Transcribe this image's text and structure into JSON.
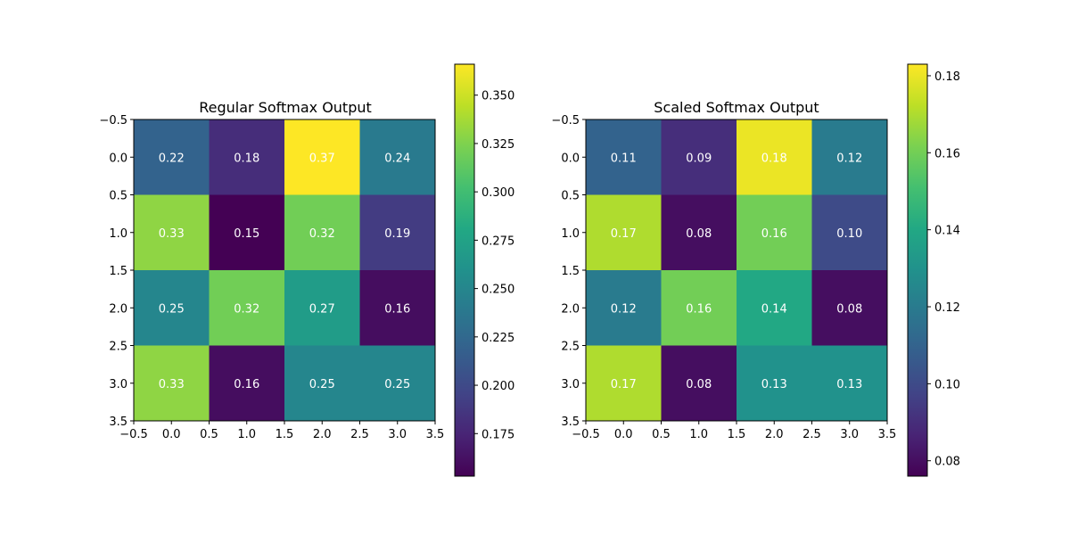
{
  "chart_data": [
    {
      "type": "heatmap",
      "title": "Regular Softmax Output",
      "xlabel": "",
      "ylabel": "",
      "xlim": [
        -0.5,
        3.5
      ],
      "ylim": [
        3.5,
        -0.5
      ],
      "x_ticks": [
        "−0.5",
        "0.0",
        "0.5",
        "1.0",
        "1.5",
        "2.0",
        "2.5",
        "3.0",
        "3.5"
      ],
      "y_ticks": [
        "−0.5",
        "0.0",
        "0.5",
        "1.0",
        "1.5",
        "2.0",
        "2.5",
        "3.0",
        "3.5"
      ],
      "values": [
        [
          0.22,
          0.18,
          0.37,
          0.24
        ],
        [
          0.33,
          0.15,
          0.32,
          0.19
        ],
        [
          0.25,
          0.32,
          0.27,
          0.16
        ],
        [
          0.33,
          0.16,
          0.25,
          0.25
        ]
      ],
      "cell_labels": [
        [
          "0.22",
          "0.18",
          "0.37",
          "0.24"
        ],
        [
          "0.33",
          "0.15",
          "0.32",
          "0.19"
        ],
        [
          "0.25",
          "0.32",
          "0.27",
          "0.16"
        ],
        [
          "0.33",
          "0.16",
          "0.25",
          "0.25"
        ]
      ],
      "colormap": "viridis",
      "colorbar": {
        "range": [
          0.153,
          0.366
        ],
        "ticks": [
          0.175,
          0.2,
          0.225,
          0.25,
          0.275,
          0.3,
          0.325,
          0.35
        ],
        "tick_labels": [
          "0.175",
          "0.200",
          "0.225",
          "0.250",
          "0.275",
          "0.300",
          "0.325",
          "0.350"
        ]
      },
      "grid": false
    },
    {
      "type": "heatmap",
      "title": "Scaled Softmax Output",
      "xlabel": "",
      "ylabel": "",
      "xlim": [
        -0.5,
        3.5
      ],
      "ylim": [
        3.5,
        -0.5
      ],
      "x_ticks": [
        "−0.5",
        "0.0",
        "0.5",
        "1.0",
        "1.5",
        "2.0",
        "2.5",
        "3.0",
        "3.5"
      ],
      "y_ticks": [
        "−0.5",
        "0.0",
        "0.5",
        "1.0",
        "1.5",
        "2.0",
        "2.5",
        "3.0",
        "3.5"
      ],
      "values": [
        [
          0.11,
          0.09,
          0.18,
          0.12
        ],
        [
          0.17,
          0.08,
          0.16,
          0.1
        ],
        [
          0.12,
          0.16,
          0.14,
          0.08
        ],
        [
          0.17,
          0.08,
          0.13,
          0.13
        ]
      ],
      "cell_labels": [
        [
          "0.11",
          "0.09",
          "0.18",
          "0.12"
        ],
        [
          "0.17",
          "0.08",
          "0.16",
          "0.10"
        ],
        [
          "0.12",
          "0.16",
          "0.14",
          "0.08"
        ],
        [
          "0.17",
          "0.08",
          "0.13",
          "0.13"
        ]
      ],
      "colormap": "viridis",
      "colorbar": {
        "range": [
          0.076,
          0.183
        ],
        "ticks": [
          0.08,
          0.1,
          0.12,
          0.14,
          0.16,
          0.18
        ],
        "tick_labels": [
          "0.08",
          "0.10",
          "0.12",
          "0.14",
          "0.16",
          "0.18"
        ]
      },
      "grid": false
    }
  ]
}
